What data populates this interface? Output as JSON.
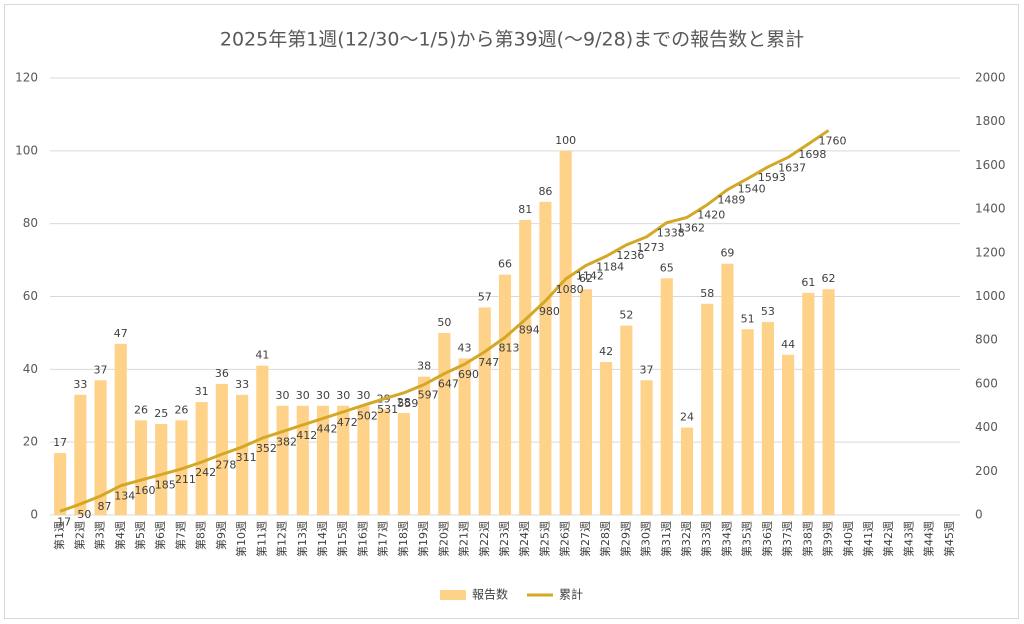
{
  "chart_data": {
    "type": "bar-line",
    "title": "2025年第1週(12/30～1/5)から第39週(～9/28)までの報告数と累計",
    "categories": [
      "第1週",
      "第2週",
      "第3週",
      "第4週",
      "第5週",
      "第6週",
      "第7週",
      "第8週",
      "第9週",
      "第10週",
      "第11週",
      "第12週",
      "第13週",
      "第14週",
      "第15週",
      "第16週",
      "第17週",
      "第18週",
      "第19週",
      "第20週",
      "第21週",
      "第22週",
      "第23週",
      "第24週",
      "第25週",
      "第26週",
      "第27週",
      "第28週",
      "第29週",
      "第30週",
      "第31週",
      "第32週",
      "第33週",
      "第34週",
      "第35週",
      "第36週",
      "第37週",
      "第38週",
      "第39週",
      "第40週",
      "第41週",
      "第42週",
      "第43週",
      "第44週",
      "第45週"
    ],
    "series": [
      {
        "name": "報告数",
        "type": "bar",
        "color": "#ffd28a",
        "values": [
          17,
          33,
          37,
          47,
          26,
          25,
          26,
          31,
          36,
          33,
          41,
          30,
          30,
          30,
          30,
          30,
          29,
          28,
          38,
          50,
          43,
          57,
          66,
          81,
          86,
          100,
          62,
          42,
          52,
          37,
          65,
          24,
          58,
          69,
          51,
          53,
          44,
          61,
          62,
          null,
          null,
          null,
          null,
          null,
          null
        ]
      },
      {
        "name": "累計",
        "type": "line",
        "axis": "y2",
        "color": "#d4a826",
        "values": [
          17,
          50,
          87,
          134,
          160,
          185,
          211,
          242,
          278,
          311,
          352,
          382,
          412,
          442,
          472,
          502,
          531,
          559,
          597,
          647,
          690,
          747,
          813,
          894,
          980,
          1080,
          1142,
          1184,
          1236,
          1273,
          1338,
          1362,
          1420,
          1489,
          1540,
          1593,
          1637,
          1698,
          1760,
          null,
          null,
          null,
          null,
          null,
          null
        ]
      }
    ],
    "ylim": [
      0,
      120
    ],
    "yticks": [
      0,
      20,
      40,
      60,
      80,
      100,
      120
    ],
    "y2lim": [
      0,
      2000
    ],
    "y2ticks": [
      0,
      200,
      400,
      600,
      800,
      1000,
      1200,
      1400,
      1600,
      1800,
      2000
    ],
    "grid": true,
    "legend": "bottom"
  }
}
